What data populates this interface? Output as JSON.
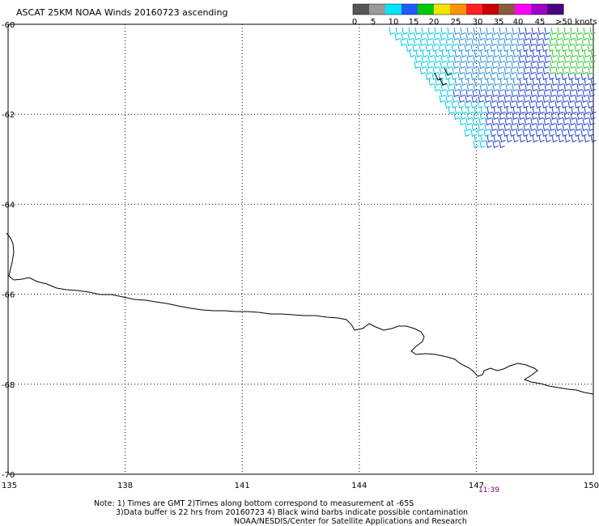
{
  "title": "ASCAT 25KM NOAA Winds 20160723 ascending",
  "legend": {
    "ticks": [
      "0",
      "5",
      "10",
      "15",
      "20",
      "25",
      "30",
      "35",
      "40",
      "45",
      ">50 knots"
    ],
    "colors": [
      "#555555",
      "#9a9a9a",
      "#00e5ff",
      "#1f5cff",
      "#00c800",
      "#f2e600",
      "#ff9400",
      "#ff2020",
      "#c80000",
      "#8a5a3a",
      "#ff00ff",
      "#a000c8",
      "#4a0080"
    ]
  },
  "axes": {
    "lat_labels": [
      "-60",
      "-62",
      "-64",
      "-66",
      "-68",
      "-70"
    ],
    "lon_labels": [
      "135",
      "138",
      "141",
      "144",
      "147",
      "150"
    ],
    "lat_range": [
      -70,
      -60
    ],
    "lon_range": [
      135,
      150
    ],
    "grid": "dotted"
  },
  "time_label": {
    "text": "11:39",
    "color": "#800080"
  },
  "notes": [
    "Note: 1) Times are GMT 2)Times along bottom correspond to measurement at -65S",
    "3)Data buffer is 22 hrs from 20160723 4) Black wind barbs indicate possible contamination",
    "NOAA/NESDIS/Center for Satellite Applications and Research"
  ]
}
